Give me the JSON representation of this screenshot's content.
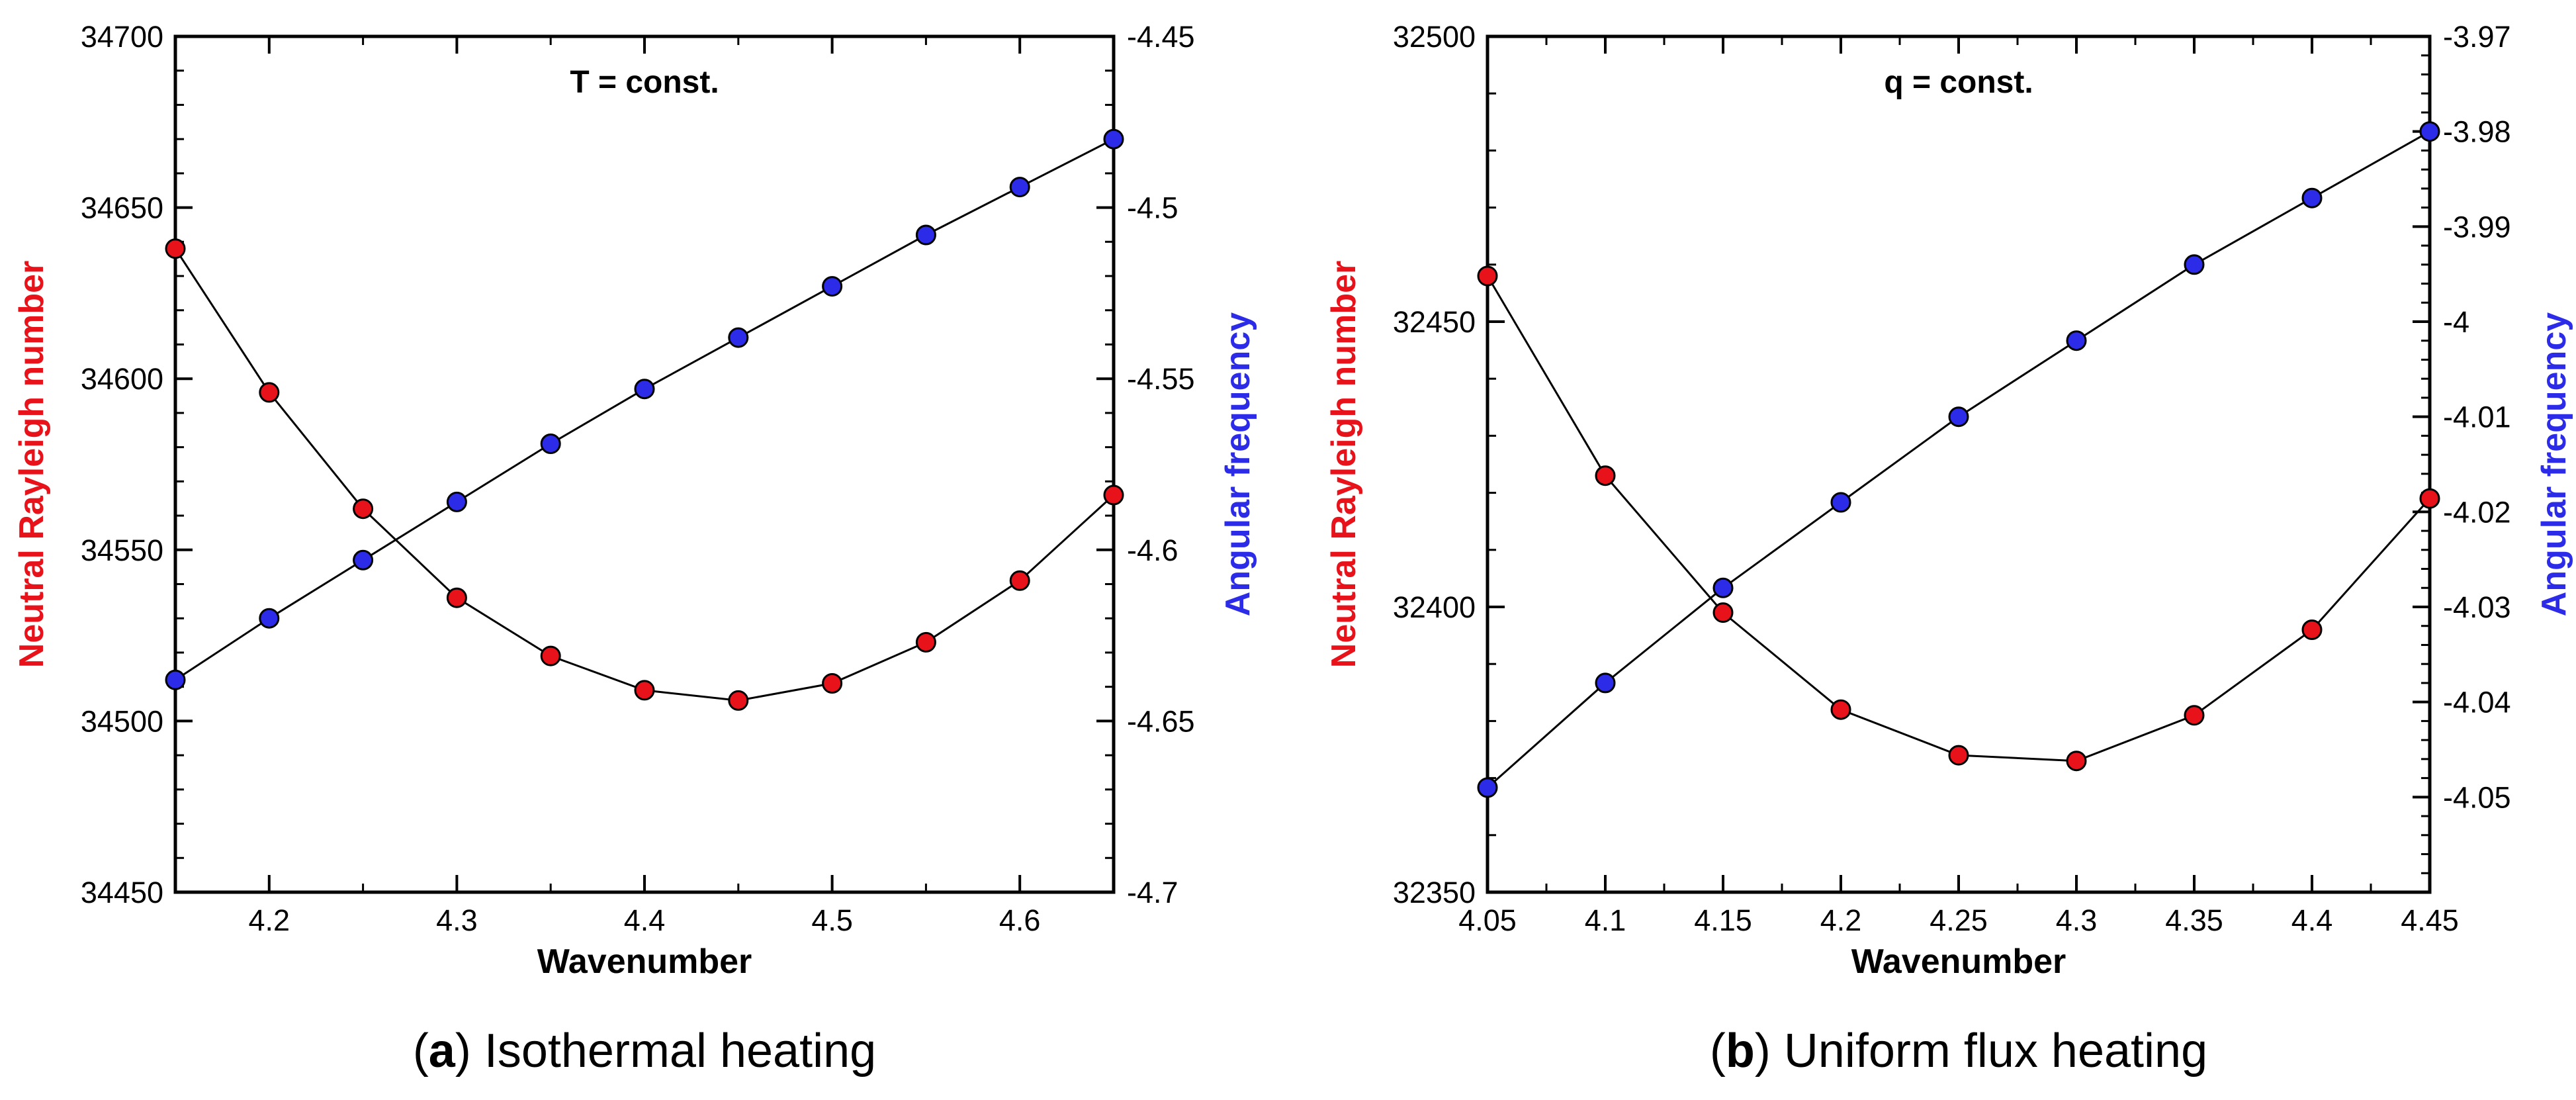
{
  "chart_data": [
    {
      "type": "line",
      "panel_label": "a",
      "caption": "Isothermal heating",
      "title": "T = const.",
      "xlabel": "Wavenumber",
      "ylabel_left": "Neutral Rayleigh number",
      "ylabel_right": "Angular frequency",
      "xlim": [
        4.15,
        4.65
      ],
      "ylim_left": [
        34450,
        34700
      ],
      "ylim_right": [
        -4.7,
        -4.45
      ],
      "x_ticks": [
        4.2,
        4.3,
        4.4,
        4.5,
        4.6
      ],
      "x_tick_labels": [
        "4.2",
        "4.3",
        "4.4",
        "4.5",
        "4.6"
      ],
      "y_left_ticks": [
        34450,
        34500,
        34550,
        34600,
        34650,
        34700
      ],
      "y_left_tick_labels": [
        "34450",
        "34500",
        "34550",
        "34600",
        "34650",
        "34700"
      ],
      "y_right_ticks": [
        -4.7,
        -4.65,
        -4.6,
        -4.55,
        -4.5,
        -4.45
      ],
      "y_right_tick_labels": [
        "-4.7",
        "-4.65",
        "-4.6",
        "-4.55",
        "-4.5",
        "-4.45"
      ],
      "x": [
        4.15,
        4.2,
        4.25,
        4.3,
        4.35,
        4.4,
        4.45,
        4.5,
        4.55,
        4.6,
        4.65
      ],
      "series": [
        {
          "name": "Neutral Rayleigh number",
          "axis": "left",
          "color": "#e8121a",
          "values": [
            34638,
            34596,
            34562,
            34536,
            34519,
            34509,
            34506,
            34511,
            34523,
            34541,
            34566
          ]
        },
        {
          "name": "Angular frequency",
          "axis": "right",
          "color": "#2b2be8",
          "values": [
            -4.638,
            -4.62,
            -4.603,
            -4.586,
            -4.569,
            -4.553,
            -4.538,
            -4.523,
            -4.508,
            -4.494,
            -4.48
          ]
        }
      ],
      "label_colors": {
        "left": "#e8121a",
        "right": "#2b2be8"
      }
    },
    {
      "type": "line",
      "panel_label": "b",
      "caption": "Uniform flux heating",
      "title": "q = const.",
      "xlabel": "Wavenumber",
      "ylabel_left": "Neutral Rayleigh number",
      "ylabel_right": "Angular frequency",
      "xlim": [
        4.05,
        4.45
      ],
      "ylim_left": [
        32350,
        32500
      ],
      "ylim_right": [
        -4.06,
        -3.97
      ],
      "x_ticks": [
        4.05,
        4.1,
        4.15,
        4.2,
        4.25,
        4.3,
        4.35,
        4.4,
        4.45
      ],
      "x_tick_labels": [
        "4.05",
        "4.1",
        "4.15",
        "4.2",
        "4.25",
        "4.3",
        "4.35",
        "4.4",
        "4.45"
      ],
      "y_left_ticks": [
        32350,
        32400,
        32450,
        32500
      ],
      "y_left_tick_labels": [
        "32350",
        "32400",
        "32450",
        "32500"
      ],
      "y_right_ticks": [
        -4.05,
        -4.04,
        -4.03,
        -4.02,
        -4.01,
        -4.0,
        -3.99,
        -3.98,
        -3.97
      ],
      "y_right_tick_labels": [
        "-4.05",
        "-4.04",
        "-4.03",
        "-4.02",
        "-4.01",
        "-4",
        "-3.99",
        "-3.98",
        "-3.97"
      ],
      "x": [
        4.05,
        4.1,
        4.15,
        4.2,
        4.25,
        4.3,
        4.35,
        4.4,
        4.45
      ],
      "series": [
        {
          "name": "Neutral Rayleigh number",
          "axis": "left",
          "color": "#e8121a",
          "values": [
            32458,
            32423,
            32399,
            32382,
            32374,
            32373,
            32381,
            32396,
            32419
          ]
        },
        {
          "name": "Angular frequency",
          "axis": "right",
          "color": "#2b2be8",
          "values": [
            -4.049,
            -4.038,
            -4.028,
            -4.019,
            -4.01,
            -4.002,
            -3.994,
            -3.987,
            -3.98
          ]
        }
      ],
      "label_colors": {
        "left": "#e8121a",
        "right": "#2b2be8"
      }
    }
  ]
}
